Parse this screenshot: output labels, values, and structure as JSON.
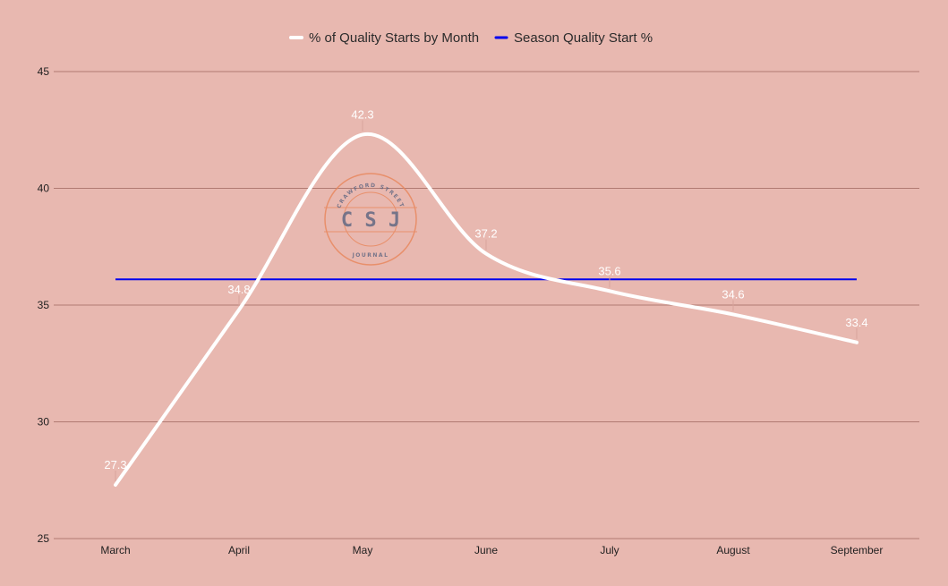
{
  "chart_data": {
    "type": "line",
    "categories": [
      "March",
      "April",
      "May",
      "June",
      "July",
      "August",
      "September"
    ],
    "series": [
      {
        "name": "% of Quality Starts by Month",
        "values": [
          27.3,
          34.8,
          42.3,
          37.2,
          35.6,
          34.6,
          33.4
        ],
        "color": "#ffffff",
        "smooth": true,
        "data_labels": [
          "27.3",
          "34.8",
          "42.3",
          "37.2",
          "35.6",
          "34.6",
          "33.4"
        ]
      },
      {
        "name": "Season Quality Start %",
        "values": [
          36.1,
          36.1,
          36.1,
          36.1,
          36.1,
          36.1,
          36.1
        ],
        "color": "#0000ee"
      }
    ],
    "ylim": [
      25,
      45
    ],
    "yticks": [
      "25",
      "30",
      "35",
      "40",
      "45"
    ],
    "grid": true,
    "gridline_color": "#b07a72",
    "legend_position": "top-center",
    "background": "#e8b8b0"
  },
  "watermark": {
    "initials": "C S J",
    "top_text": "CRAWFORD STREET",
    "bottom_text": "JOURNAL",
    "color": "#e8865a"
  }
}
